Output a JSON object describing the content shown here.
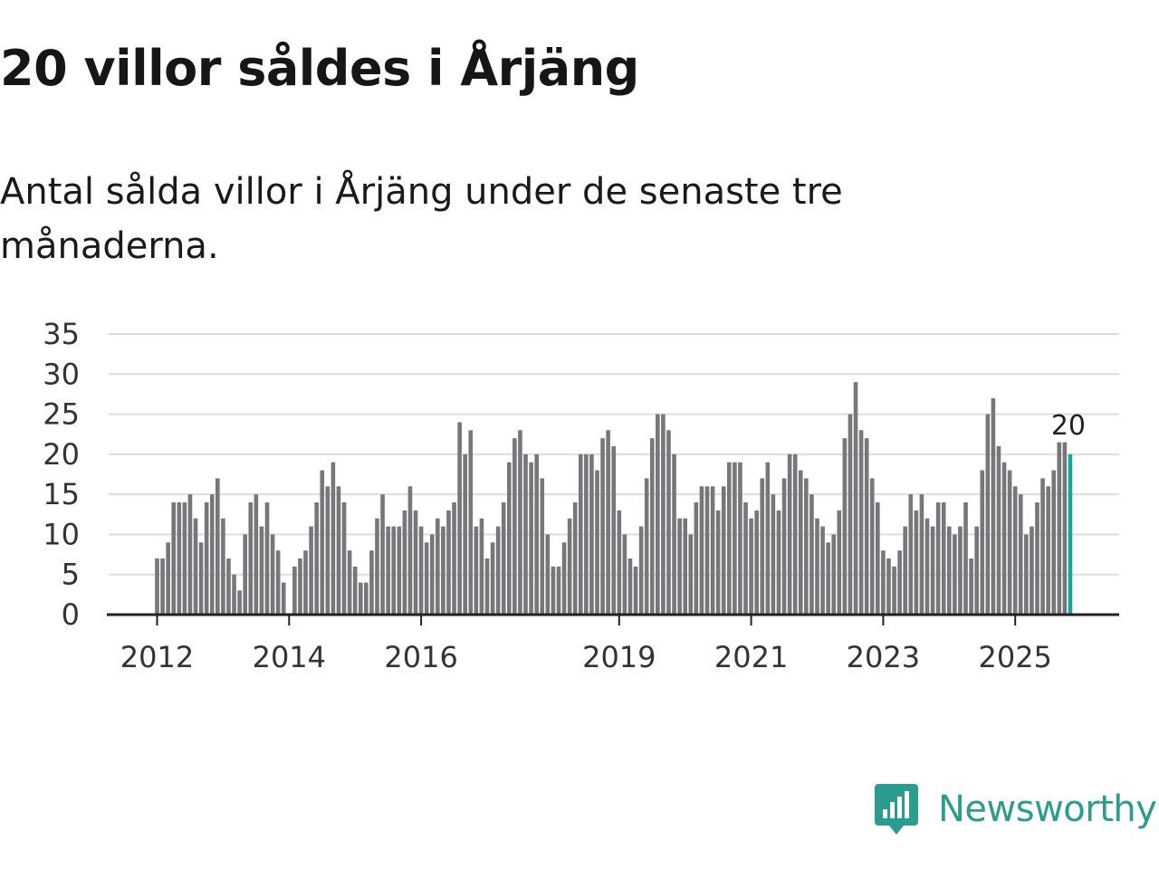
{
  "title": "20 villor såldes i Årjäng",
  "subtitle": "Antal sålda villor i Årjäng under de senaste tre månaderna.",
  "brand": {
    "name": "Newsworthy",
    "color": "#2a9d8f",
    "icon": "chart-speech-bubble-icon"
  },
  "colors": {
    "bar": "#76767b",
    "highlight": "#1aa59b",
    "grid": "#dddddd",
    "axis": "#222222"
  },
  "chart_data": {
    "type": "bar",
    "title": "",
    "xlabel": "",
    "ylabel": "",
    "ylim": [
      0,
      35
    ],
    "yticks": [
      0,
      5,
      10,
      15,
      20,
      25,
      30,
      35
    ],
    "grid": true,
    "start_year": 2012,
    "start_month": 1,
    "xticks": [
      {
        "label": "2012",
        "index": 0
      },
      {
        "label": "2014",
        "index": 24
      },
      {
        "label": "2016",
        "index": 48
      },
      {
        "label": "2019",
        "index": 84
      },
      {
        "label": "2021",
        "index": 108
      },
      {
        "label": "2023",
        "index": 132
      },
      {
        "label": "2025",
        "index": 156
      }
    ],
    "values": [
      7,
      7,
      9,
      14,
      14,
      14,
      15,
      12,
      9,
      14,
      15,
      17,
      12,
      7,
      5,
      3,
      10,
      14,
      15,
      11,
      14,
      10,
      8,
      4,
      0,
      6,
      7,
      8,
      11,
      14,
      18,
      16,
      19,
      16,
      14,
      8,
      6,
      4,
      4,
      8,
      12,
      15,
      11,
      11,
      11,
      13,
      16,
      13,
      11,
      9,
      10,
      12,
      11,
      13,
      14,
      24,
      20,
      23,
      11,
      12,
      7,
      9,
      11,
      14,
      19,
      22,
      23,
      20,
      19,
      20,
      17,
      10,
      6,
      6,
      9,
      12,
      14,
      20,
      20,
      20,
      18,
      22,
      23,
      21,
      13,
      10,
      7,
      6,
      11,
      17,
      22,
      25,
      25,
      23,
      20,
      12,
      12,
      10,
      14,
      16,
      16,
      16,
      13,
      16,
      19,
      19,
      19,
      14,
      12,
      13,
      17,
      19,
      15,
      13,
      17,
      20,
      20,
      18,
      17,
      15,
      12,
      11,
      9,
      10,
      13,
      22,
      25,
      29,
      23,
      22,
      17,
      14,
      8,
      7,
      6,
      8,
      11,
      15,
      13,
      15,
      12,
      11,
      14,
      14,
      11,
      10,
      11,
      14,
      7,
      11,
      18,
      25,
      27,
      21,
      19,
      18,
      16,
      15,
      10,
      11,
      14,
      17,
      16,
      18,
      21.5,
      21.5,
      20
    ],
    "highlight_index": 166,
    "highlight_label": "20"
  }
}
